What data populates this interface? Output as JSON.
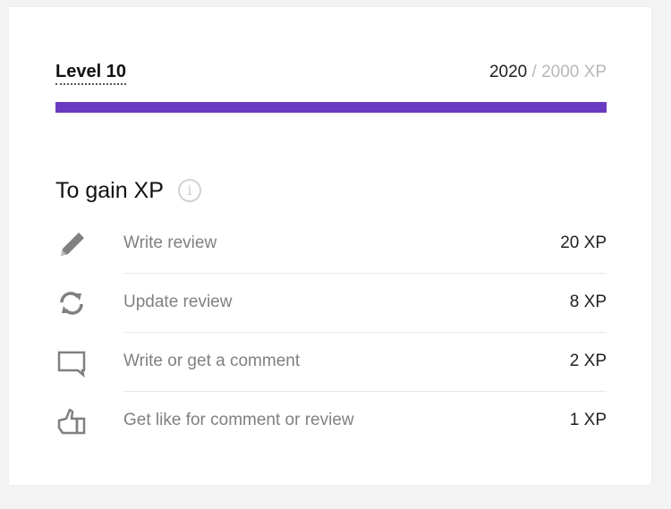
{
  "level": {
    "label": "Level 10",
    "current_xp": "2020",
    "max_xp": "/ 2000 XP",
    "progress": 1.0,
    "bar_color": "#6a3bc0"
  },
  "gain": {
    "title": "To gain XP",
    "info_icon": "info-icon",
    "info_glyph": "i"
  },
  "actions": [
    {
      "icon": "pencil-icon",
      "label": "Write review",
      "xp": "20 XP"
    },
    {
      "icon": "refresh-icon",
      "label": "Update review",
      "xp": "8 XP"
    },
    {
      "icon": "comment-icon",
      "label": "Write or get a comment",
      "xp": "2 XP"
    },
    {
      "icon": "thumbs-up-icon",
      "label": "Get like for comment or review",
      "xp": "1 XP"
    }
  ]
}
